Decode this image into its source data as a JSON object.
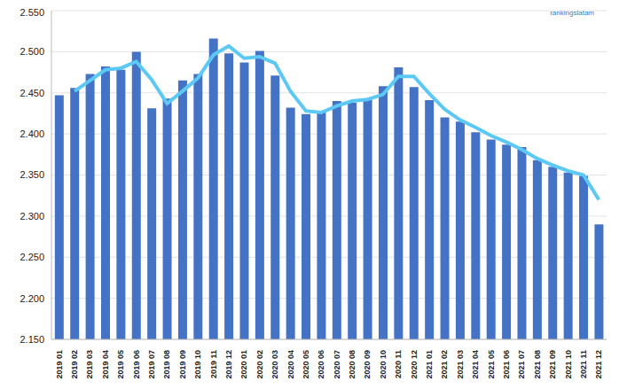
{
  "chart_data": {
    "type": "bar",
    "annotation": "rankingslatam",
    "categories": [
      "2019 01",
      "2019 02",
      "2019 03",
      "2019 04",
      "2019 05",
      "2019 06",
      "2019 07",
      "2019 08",
      "2019 09",
      "2019 10",
      "2019 11",
      "2019 12",
      "2020 01",
      "2020 02",
      "2020 03",
      "2020 04",
      "2020 05",
      "2020 06",
      "2020 07",
      "2020 08",
      "2020 09",
      "2020 10",
      "2020 11",
      "2020 12",
      "2021 01",
      "2021 02",
      "2021 03",
      "2021 04",
      "2021 05",
      "2021 06",
      "2021 07",
      "2021 08",
      "2021 09",
      "2021 10",
      "2021 11",
      "2021 12"
    ],
    "series": [
      {
        "type": "bar",
        "color": "#4472c4",
        "values": [
          2447,
          2456,
          2473,
          2482,
          2478,
          2500,
          2431,
          2443,
          2465,
          2473,
          2516,
          2498,
          2487,
          2501,
          2471,
          2432,
          2424,
          2428,
          2440,
          2438,
          2443,
          2458,
          2481,
          2457,
          2441,
          2420,
          2415,
          2402,
          2393,
          2387,
          2384,
          2368,
          2360,
          2353,
          2349,
          2290
        ]
      },
      {
        "type": "line",
        "color": "#5bc8f5",
        "values": [
          null,
          2452,
          2465,
          2478,
          2480,
          2488,
          2466,
          2437,
          2452,
          2468,
          2496,
          2507,
          2492,
          2494,
          2486,
          2452,
          2428,
          2426,
          2434,
          2440,
          2442,
          2448,
          2470,
          2470,
          2449,
          2430,
          2417,
          2408,
          2398,
          2390,
          2381,
          2370,
          2362,
          2355,
          2350,
          2320
        ]
      }
    ],
    "ylim": [
      2150,
      2550
    ],
    "yticks": [
      {
        "value": 2150,
        "label": "2.150"
      },
      {
        "value": 2200,
        "label": "2.200"
      },
      {
        "value": 2250,
        "label": "2.250"
      },
      {
        "value": 2300,
        "label": "2.300"
      },
      {
        "value": 2350,
        "label": "2.350"
      },
      {
        "value": 2400,
        "label": "2.400"
      },
      {
        "value": 2450,
        "label": "2.450"
      },
      {
        "value": 2500,
        "label": "2.500"
      },
      {
        "value": 2550,
        "label": "2.550"
      }
    ],
    "grid": true
  }
}
